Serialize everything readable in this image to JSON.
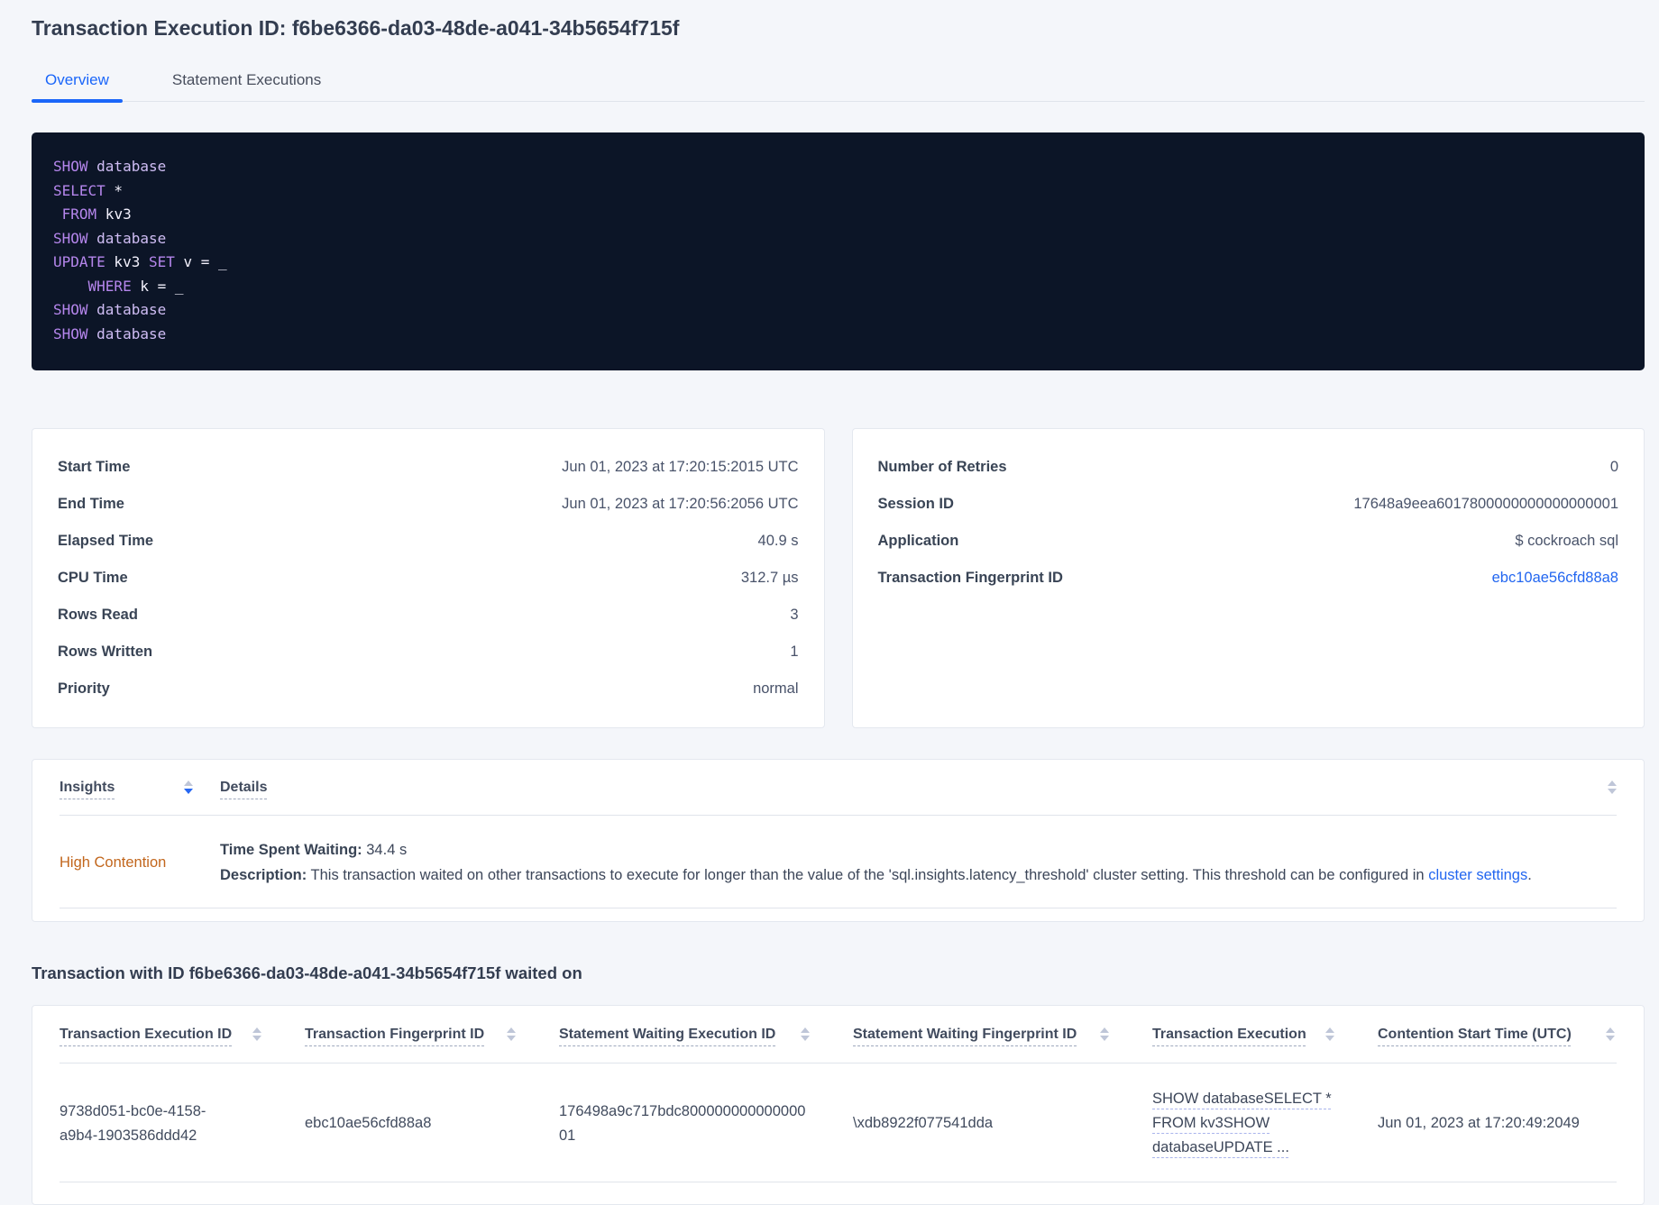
{
  "page": {
    "title": "Transaction Execution ID: f6be6366-da03-48de-a041-34b5654f715f"
  },
  "tabs": {
    "overview": "Overview",
    "statement_executions": "Statement Executions"
  },
  "sql": {
    "lines": [
      {
        "tokens": [
          {
            "text": "SHOW",
            "type": "kw"
          },
          {
            "text": " database",
            "type": "id"
          }
        ]
      },
      {
        "tokens": [
          {
            "text": "SELECT",
            "type": "kw"
          },
          {
            "text": " *",
            "type": "pl"
          }
        ]
      },
      {
        "tokens": [
          {
            "text": " FROM",
            "type": "kw"
          },
          {
            "text": " kv3",
            "type": "pl"
          }
        ]
      },
      {
        "tokens": [
          {
            "text": "SHOW",
            "type": "kw"
          },
          {
            "text": " database",
            "type": "id"
          }
        ]
      },
      {
        "tokens": [
          {
            "text": "UPDATE",
            "type": "kw"
          },
          {
            "text": " kv3 ",
            "type": "pl"
          },
          {
            "text": "SET",
            "type": "kw"
          },
          {
            "text": " v = _",
            "type": "pl"
          }
        ]
      },
      {
        "tokens": [
          {
            "text": "    WHERE",
            "type": "kw"
          },
          {
            "text": " k = _",
            "type": "pl"
          }
        ]
      },
      {
        "tokens": [
          {
            "text": "SHOW",
            "type": "kw"
          },
          {
            "text": " database",
            "type": "id"
          }
        ]
      },
      {
        "tokens": [
          {
            "text": "SHOW",
            "type": "kw"
          },
          {
            "text": " database",
            "type": "id"
          }
        ]
      }
    ]
  },
  "summary_left": {
    "rows": [
      {
        "label": "Start Time",
        "value": "Jun 01, 2023 at 17:20:15:2015 UTC"
      },
      {
        "label": "End Time",
        "value": "Jun 01, 2023 at 17:20:56:2056 UTC"
      },
      {
        "label": "Elapsed Time",
        "value": "40.9 s"
      },
      {
        "label": "CPU Time",
        "value": "312.7 µs"
      },
      {
        "label": "Rows Read",
        "value": "3"
      },
      {
        "label": "Rows Written",
        "value": "1"
      },
      {
        "label": "Priority",
        "value": "normal"
      }
    ]
  },
  "summary_right": {
    "rows": [
      {
        "label": "Number of Retries",
        "value": "0"
      },
      {
        "label": "Session ID",
        "value": "17648a9eea6017800000000000000001"
      },
      {
        "label": "Application",
        "value": "$ cockroach sql"
      },
      {
        "label": "Transaction Fingerprint ID",
        "value": "ebc10ae56cfd88a8"
      }
    ]
  },
  "insights": {
    "columns": {
      "insights": "Insights",
      "details": "Details"
    },
    "row": {
      "insight": "High Contention",
      "waiting_label": "Time Spent Waiting:",
      "waiting_value": " 34.4 s",
      "description_label": "Description:",
      "description_text": " This transaction waited on other transactions to execute for longer than the value of the 'sql.insights.latency_threshold' cluster setting. This threshold can be configured in ",
      "description_link": "cluster settings",
      "description_suffix": "."
    }
  },
  "waited_section": {
    "heading": "Transaction with ID f6be6366-da03-48de-a041-34b5654f715f waited on",
    "columns": [
      "Transaction Execution ID",
      "Transaction Fingerprint ID",
      "Statement Waiting Execution ID",
      "Statement Waiting Fingerprint ID",
      "Transaction Execution",
      "Contention Start Time (UTC)"
    ],
    "row": {
      "transaction_execution_id": "9738d051-bc0e-4158-a9b4-1903586ddd42",
      "transaction_fingerprint_id": "ebc10ae56cfd88a8",
      "statement_waiting_execution_id": "176498a9c717bdc80000000000000001",
      "statement_waiting_fingerprint_id": "\\xdb8922f077541dda",
      "transaction_execution": "SHOW databaseSELECT * FROM kv3SHOW databaseUPDATE ...",
      "contention_start_time": "Jun 01, 2023 at 17:20:49:2049"
    }
  },
  "colors": {
    "accent_blue": "#1a66f9",
    "link_blue": "#2266f0",
    "warning_orange": "#c2661c",
    "code_background": "#0c1527",
    "sql_keyword": "#b586ec",
    "sql_identifier": "#cfbdf4"
  }
}
